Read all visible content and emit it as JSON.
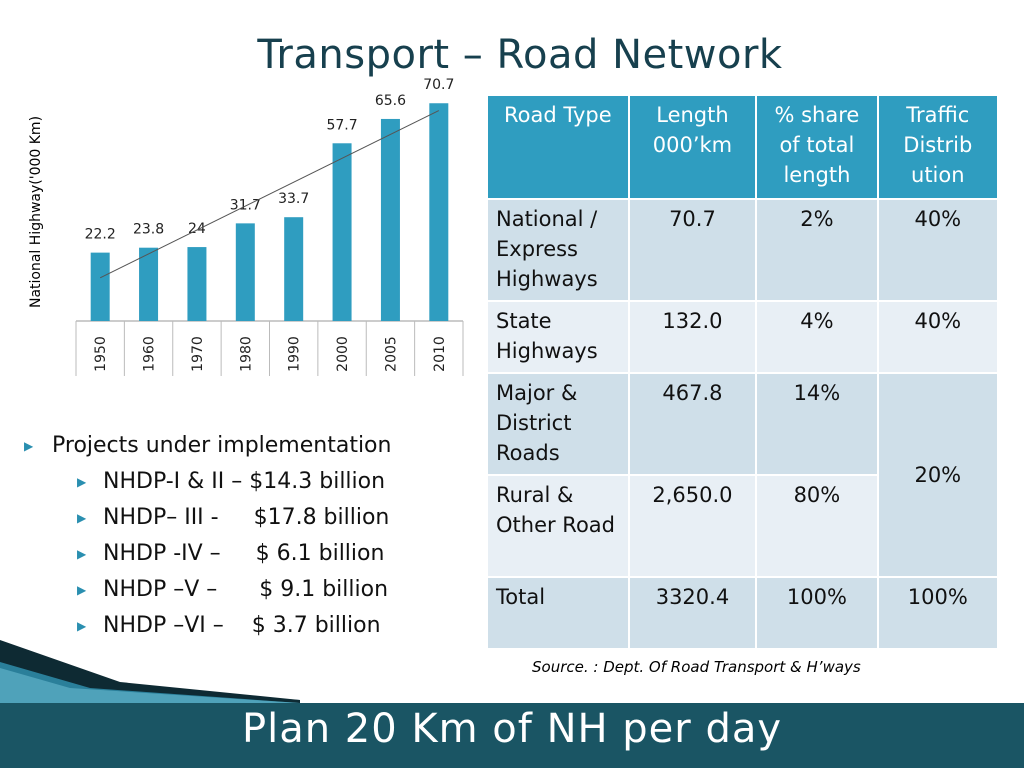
{
  "title": "Transport – Road Network",
  "chart_data": {
    "type": "bar",
    "ylabel": "National Highway('000 Km)",
    "categories": [
      "1950",
      "1960",
      "1970",
      "1980",
      "1990",
      "2000",
      "2005",
      "2010"
    ],
    "values": [
      22.2,
      23.8,
      24,
      31.7,
      33.7,
      57.7,
      65.6,
      70.7
    ],
    "value_labels": [
      "22.2",
      "23.8",
      "24",
      "31.7",
      "33.7",
      "57.7",
      "65.6",
      "70.7"
    ],
    "trendline": true,
    "color": "#2f9dc0",
    "ylim": [
      0,
      75
    ]
  },
  "bullets": {
    "heading": "Projects under implementation",
    "items": [
      {
        "name": "NHDP-I & II – ",
        "amount": "$14.3 billion"
      },
      {
        "name": "NHDP– III -",
        "amount": "$17.8 billion"
      },
      {
        "name": "NHDP -IV –",
        "amount": "$ 6.1 billion"
      },
      {
        "name": "NHDP –V –",
        "amount": "$ 9.1 billion"
      },
      {
        "name": "NHDP –VI –",
        "amount": "$ 3.7 billion"
      }
    ]
  },
  "table": {
    "headers": [
      "Road Type",
      "Length 000’km",
      "% share of total length",
      "Traffic Distrib ution"
    ],
    "rows": [
      {
        "type": "National / Express Highways",
        "length": "70.7",
        "share": "2%",
        "traffic": "40%"
      },
      {
        "type": "State Highways",
        "length": "132.0",
        "share": "4%",
        "traffic": "40%"
      },
      {
        "type": "Major & District Roads",
        "length": "467.8",
        "share": "14%"
      },
      {
        "type": "Rural & Other Road",
        "length": "2,650.0",
        "share": "80%"
      },
      {
        "type": "Total",
        "length": "3320.4",
        "share": "100%",
        "traffic": "100%"
      }
    ],
    "merged_traffic": "20%"
  },
  "source": "Source. : Dept. Of Road Transport & H’ways",
  "footer": "Plan 20 Km of NH per day",
  "colors": {
    "accent": "#2f9dc0",
    "title": "#17404e",
    "footer": "#1a5564"
  }
}
